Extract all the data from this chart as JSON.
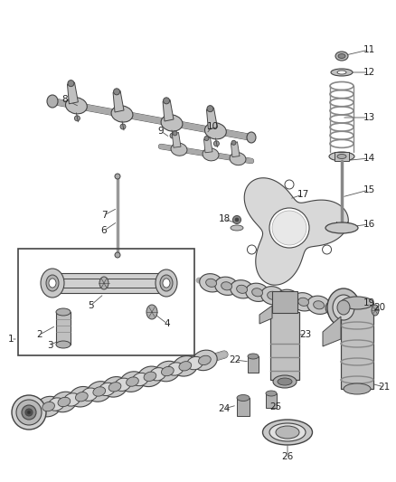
{
  "background_color": "#ffffff",
  "line_color": "#666666",
  "part_color": "#cccccc",
  "dark_color": "#444444",
  "label_color": "#222222",
  "label_fontsize": 7.5,
  "leader_color": "#555555"
}
